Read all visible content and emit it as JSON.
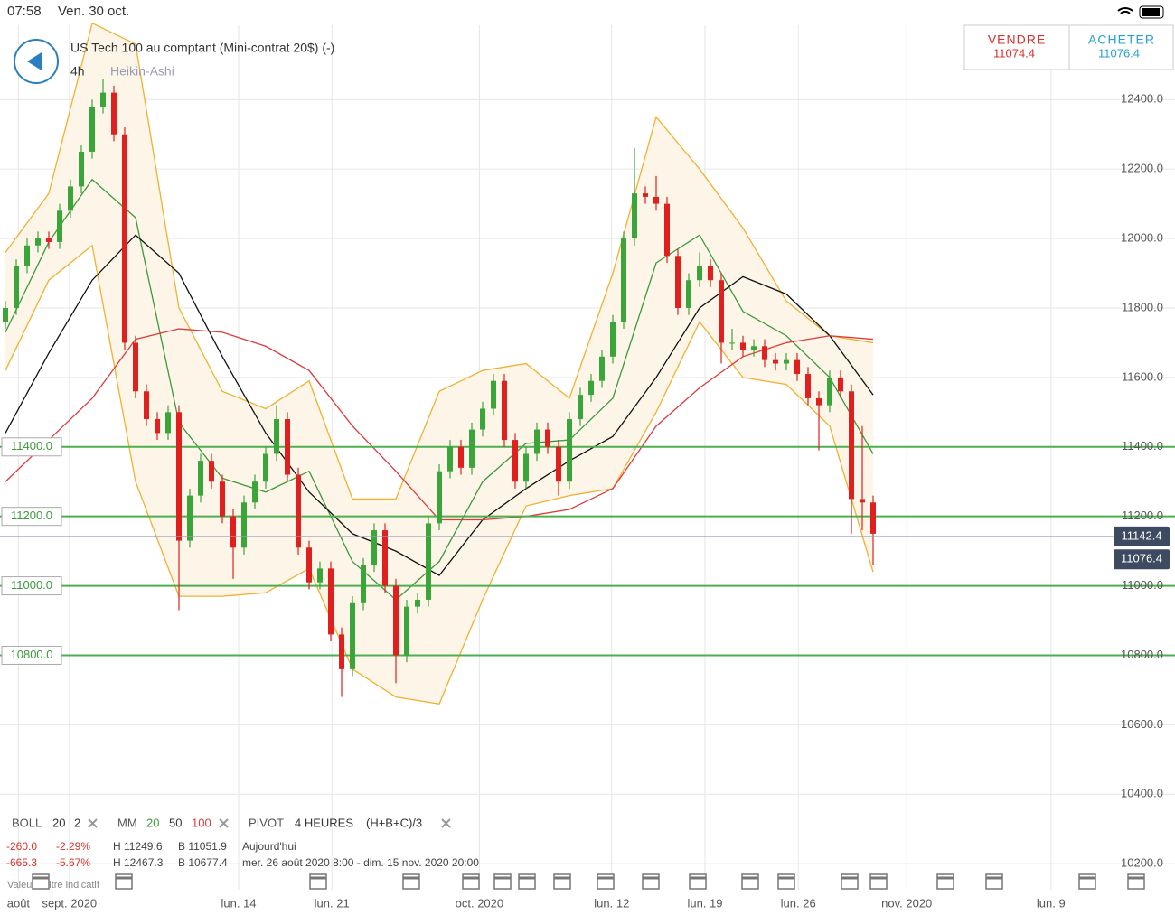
{
  "status_bar": {
    "time": "07:58",
    "date": "Ven. 30 oct."
  },
  "header": {
    "instrument": "US Tech 100 au comptant (Mini-contrat 20$) (-)",
    "timeframe": "4h",
    "chart_style": "Heikin-Ashi"
  },
  "quote": {
    "sell_label": "VENDRE",
    "sell_price": "11074.4",
    "buy_label": "ACHETER",
    "buy_price": "11076.4"
  },
  "indicators": {
    "boll_label": "BOLL",
    "mm_label": "MM",
    "pivot_label": "PIVOT",
    "pivot_period": "4 HEURES",
    "pivot_formula": "(H+B+C)/3"
  },
  "stats": [
    [
      "-260.0",
      "-2.29%",
      "H 11249.6",
      "B 11051.9",
      "Aujourd'hui"
    ],
    [
      "-665.3",
      "-5.67%",
      "H 12467.3",
      "B 10677.4",
      "mer. 26 août 2020 8:00 - dim. 15 nov. 2020 20:00"
    ]
  ],
  "disclaimer": "Valeur à titre indicatif",
  "chart_data": {
    "type": "candlestick",
    "up_color": "#3aa63a",
    "down_color": "#e0201e",
    "open": [
      11760,
      11800,
      11920,
      11980,
      12000,
      11990,
      12080,
      12150,
      12250,
      12380,
      12420,
      12300,
      11700,
      11560,
      11480,
      11440,
      11500,
      11130,
      11260,
      11360,
      11300,
      11200,
      11110,
      11240,
      11300,
      11380,
      11480,
      11320,
      11110,
      11010,
      11050,
      10860,
      10760,
      10950,
      11060,
      11160,
      11000,
      10800,
      10940,
      10960,
      11180,
      11330,
      11400,
      11340,
      11450,
      11510,
      11590,
      11420,
      11300,
      11380,
      11450,
      11400,
      11300,
      11480,
      11550,
      11590,
      11660,
      11760,
      12000,
      12130,
      12120,
      12100,
      11950,
      11800,
      11880,
      11920,
      11880,
      11700,
      11700,
      11680,
      11690,
      11650,
      11640,
      11650,
      11610,
      11540,
      11520,
      11600,
      11560,
      11250,
      11240
    ],
    "high": [
      11820,
      11940,
      12000,
      12020,
      12020,
      12100,
      12170,
      12270,
      12400,
      12460,
      12440,
      12320,
      11720,
      11580,
      11500,
      11520,
      11520,
      11280,
      11380,
      11380,
      11320,
      11220,
      11260,
      11320,
      11400,
      11520,
      11500,
      11340,
      11130,
      11070,
      11070,
      10880,
      10970,
      11080,
      11180,
      11180,
      11020,
      10960,
      10980,
      11200,
      11350,
      11420,
      11420,
      11470,
      11530,
      11610,
      11610,
      11440,
      11400,
      11470,
      11470,
      11420,
      11500,
      11570,
      11610,
      11680,
      11780,
      12020,
      12260,
      12150,
      12180,
      12120,
      11970,
      11900,
      11960,
      11940,
      11900,
      11740,
      11720,
      11710,
      11710,
      11670,
      11670,
      11670,
      11630,
      11560,
      11620,
      11620,
      11580,
      11460,
      11260
    ],
    "low": [
      11740,
      11780,
      11900,
      11960,
      11970,
      11970,
      12060,
      12130,
      12230,
      12360,
      12280,
      11680,
      11540,
      11460,
      11420,
      11420,
      10930,
      11110,
      11240,
      11280,
      11180,
      11020,
      11090,
      11220,
      11280,
      11360,
      11300,
      11090,
      10990,
      10990,
      10840,
      10680,
      10740,
      10930,
      11040,
      10980,
      10720,
      10780,
      10920,
      10940,
      11160,
      11310,
      11320,
      11320,
      11430,
      11490,
      11400,
      11280,
      11280,
      11360,
      11380,
      11260,
      11280,
      11460,
      11530,
      11570,
      11640,
      11740,
      11980,
      12100,
      12080,
      11930,
      11780,
      11780,
      11860,
      11860,
      11640,
      11680,
      11660,
      11660,
      11630,
      11620,
      11620,
      11590,
      11520,
      11390,
      11500,
      11540,
      11150,
      11160,
      11060
    ],
    "close": [
      11800,
      11920,
      11980,
      12000,
      11990,
      12080,
      12150,
      12250,
      12380,
      12420,
      12300,
      11700,
      11560,
      11480,
      11440,
      11500,
      11130,
      11260,
      11360,
      11300,
      11200,
      11110,
      11240,
      11300,
      11380,
      11480,
      11320,
      11110,
      11010,
      11050,
      10860,
      10760,
      10950,
      11060,
      11160,
      11000,
      10800,
      10940,
      10960,
      11180,
      11330,
      11400,
      11340,
      11450,
      11510,
      11590,
      11420,
      11300,
      11380,
      11450,
      11400,
      11300,
      11480,
      11550,
      11590,
      11660,
      11760,
      12000,
      12130,
      12120,
      12100,
      11950,
      11800,
      11880,
      11920,
      11880,
      11700,
      11700,
      11680,
      11690,
      11650,
      11640,
      11650,
      11610,
      11540,
      11520,
      11600,
      11560,
      11250,
      11240,
      11150
    ],
    "overlay_x": [
      0,
      4,
      8,
      12,
      16,
      20,
      24,
      28,
      32,
      36,
      40,
      44,
      48,
      52,
      56,
      60,
      64,
      68,
      72,
      76,
      80
    ],
    "bollinger": {
      "period": 20,
      "multiplier": 2,
      "color": "#f0b030",
      "fill": "#fdf5e8",
      "upper": [
        11960,
        12130,
        12620,
        12560,
        11800,
        11560,
        11510,
        11590,
        11250,
        11250,
        11560,
        11620,
        11640,
        11540,
        11900,
        12350,
        12200,
        12030,
        11820,
        11720,
        11700
      ],
      "lower": [
        11620,
        11880,
        11980,
        11300,
        10970,
        10970,
        10980,
        11050,
        10760,
        10680,
        10660,
        10960,
        11230,
        11260,
        11280,
        11500,
        11760,
        11600,
        11580,
        11460,
        11040
      ]
    },
    "moving_averages": [
      {
        "period": 20,
        "color": "#3a9a3a",
        "values": [
          11730,
          11990,
          12170,
          12060,
          11470,
          11310,
          11270,
          11330,
          11070,
          10960,
          11070,
          11300,
          11410,
          11420,
          11540,
          11930,
          12010,
          11790,
          11720,
          11600,
          11380
        ]
      },
      {
        "period": 50,
        "color": "#111111",
        "values": [
          11440,
          11670,
          11880,
          12010,
          11900,
          11660,
          11440,
          11270,
          11150,
          11100,
          11030,
          11190,
          11280,
          11360,
          11430,
          11600,
          11800,
          11890,
          11840,
          11720,
          11550
        ]
      },
      {
        "period": 100,
        "color": "#dd3a3a",
        "values": [
          11300,
          11420,
          11540,
          11710,
          11740,
          11730,
          11690,
          11620,
          11460,
          11330,
          11190,
          11190,
          11200,
          11220,
          11280,
          11460,
          11570,
          11660,
          11700,
          11720,
          11710
        ]
      }
    ],
    "levels": [
      {
        "value": 11400,
        "label": "11400.0"
      },
      {
        "value": 11200,
        "label": "11200.0"
      },
      {
        "value": 11000,
        "label": "11000.0"
      },
      {
        "value": 10800,
        "label": "10800.0"
      }
    ],
    "level_color": "#4caf50",
    "last_price": 11142.4,
    "ask_price": 11076.4,
    "xlim": [
      -0.5,
      102
    ],
    "ylim": [
      10125,
      12614
    ],
    "yticks": [
      {
        "value": 12400,
        "label": "12400.0"
      },
      {
        "value": 12200,
        "label": "12200.0"
      },
      {
        "value": 12000,
        "label": "12000.0"
      },
      {
        "value": 11800,
        "label": "11800.0"
      },
      {
        "value": 11600,
        "label": "11600.0"
      },
      {
        "value": 11400,
        "label": "11400.0"
      },
      {
        "value": 11200,
        "label": "11200.0"
      },
      {
        "value": 11000,
        "label": "11000.0"
      },
      {
        "value": 10800,
        "label": "10800.0"
      },
      {
        "value": 10600,
        "label": "10600.0"
      },
      {
        "value": 10400,
        "label": "10400.0"
      },
      {
        "value": 10200,
        "label": "10200.0"
      }
    ],
    "xticks": [
      {
        "value": 1.2,
        "label": "août"
      },
      {
        "value": 5.9,
        "label": "sept. 2020"
      },
      {
        "value": 21.5,
        "label": "lun. 14"
      },
      {
        "value": 30.1,
        "label": "lun. 21"
      },
      {
        "value": 43.7,
        "label": "oct. 2020"
      },
      {
        "value": 55.9,
        "label": "lun. 12"
      },
      {
        "value": 64.5,
        "label": "lun. 19"
      },
      {
        "value": 73.1,
        "label": "lun. 26"
      },
      {
        "value": 83.1,
        "label": "nov. 2020"
      },
      {
        "value": 96.4,
        "label": "lun. 9"
      }
    ],
    "grid": true
  }
}
